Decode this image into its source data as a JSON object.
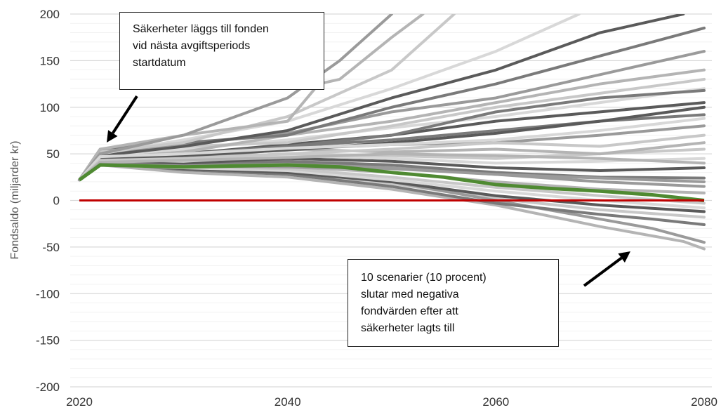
{
  "chart_data": {
    "type": "line",
    "title": "",
    "xlabel": "",
    "ylabel": "Fondsaldo (miljarder kr)",
    "xlim": [
      2020,
      2080
    ],
    "ylim": [
      -200,
      200
    ],
    "xticks": [
      "2020",
      "2040",
      "2060",
      "2080"
    ],
    "yticks": [
      "200",
      "150",
      "100",
      "50",
      "0",
      "-50",
      "-100",
      "-150",
      "-200"
    ],
    "grid": true,
    "colors": {
      "zero_line": "#c00000",
      "highlighted_scenario": "#4f8a32",
      "scenarios": [
        "#c8c8c8",
        "#b4b4b4",
        "#9a9a9a",
        "#7a7a7a",
        "#5a5a5a",
        "#d8d8d8"
      ]
    },
    "series": [
      {
        "role": "zero-reference",
        "x": [
          2020,
          2080
        ],
        "y": [
          0,
          0
        ]
      },
      {
        "role": "highlighted",
        "x": [
          2020,
          2022,
          2030,
          2040,
          2045,
          2050,
          2055,
          2060,
          2065,
          2070,
          2075,
          2080
        ],
        "y": [
          22,
          38,
          36,
          38,
          36,
          30,
          25,
          17,
          13,
          10,
          6,
          0
        ]
      },
      {
        "x": [
          2020,
          2022,
          2030,
          2040,
          2050,
          2060,
          2070,
          2075,
          2080
        ],
        "y": [
          22,
          40,
          33,
          30,
          18,
          2,
          -10,
          -14,
          -18
        ]
      },
      {
        "x": [
          2020,
          2022,
          2030,
          2040,
          2050,
          2060,
          2070,
          2078,
          2080
        ],
        "y": [
          22,
          38,
          30,
          25,
          12,
          -5,
          -28,
          -44,
          -52
        ]
      },
      {
        "x": [
          2020,
          2022,
          2030,
          2040,
          2050,
          2060,
          2070,
          2075,
          2080
        ],
        "y": [
          22,
          42,
          35,
          32,
          20,
          0,
          -20,
          -30,
          -45
        ]
      },
      {
        "x": [
          2020,
          2022,
          2030,
          2040,
          2050,
          2060,
          2070,
          2075,
          2080
        ],
        "y": [
          22,
          40,
          33,
          28,
          15,
          -3,
          -15,
          -20,
          -26
        ]
      },
      {
        "x": [
          2020,
          2022,
          2030,
          2040,
          2050,
          2060,
          2070,
          2080
        ],
        "y": [
          22,
          40,
          34,
          30,
          20,
          5,
          -5,
          -12
        ]
      },
      {
        "x": [
          2020,
          2022,
          2030,
          2040,
          2050,
          2060,
          2070,
          2080
        ],
        "y": [
          22,
          38,
          35,
          32,
          22,
          10,
          0,
          -8
        ]
      },
      {
        "x": [
          2020,
          2022,
          2030,
          2040,
          2050,
          2060,
          2070,
          2080
        ],
        "y": [
          22,
          42,
          36,
          34,
          25,
          14,
          5,
          -3
        ]
      },
      {
        "x": [
          2020,
          2022,
          2030,
          2040,
          2050,
          2060,
          2070,
          2080
        ],
        "y": [
          22,
          40,
          38,
          36,
          30,
          20,
          12,
          8
        ]
      },
      {
        "x": [
          2020,
          2022,
          2030,
          2040,
          2050,
          2060,
          2070,
          2080
        ],
        "y": [
          22,
          41,
          38,
          40,
          35,
          28,
          20,
          15
        ]
      },
      {
        "x": [
          2020,
          2022,
          2030,
          2040,
          2050,
          2060,
          2070,
          2080
        ],
        "y": [
          22,
          39,
          40,
          42,
          38,
          30,
          25,
          24
        ]
      },
      {
        "x": [
          2020,
          2022,
          2030,
          2040,
          2050,
          2060,
          2070,
          2080
        ],
        "y": [
          22,
          43,
          40,
          45,
          42,
          35,
          32,
          35
        ]
      },
      {
        "x": [
          2020,
          2022,
          2030,
          2040,
          2050,
          2060,
          2070,
          2080
        ],
        "y": [
          22,
          44,
          42,
          48,
          45,
          40,
          42,
          45
        ]
      },
      {
        "x": [
          2020,
          2022,
          2030,
          2040,
          2050,
          2060,
          2070,
          2080
        ],
        "y": [
          22,
          45,
          45,
          50,
          48,
          45,
          50,
          55
        ]
      },
      {
        "x": [
          2020,
          2022,
          2030,
          2040,
          2050,
          2060,
          2070,
          2080
        ],
        "y": [
          22,
          50,
          52,
          55,
          52,
          55,
          50,
          62
        ]
      },
      {
        "x": [
          2020,
          2022,
          2030,
          2040,
          2050,
          2060,
          2070,
          2080
        ],
        "y": [
          22,
          42,
          45,
          55,
          60,
          62,
          70,
          80
        ]
      },
      {
        "x": [
          2020,
          2022,
          2030,
          2040,
          2050,
          2060,
          2070,
          2080
        ],
        "y": [
          22,
          45,
          48,
          58,
          65,
          75,
          85,
          92
        ]
      },
      {
        "x": [
          2020,
          2022,
          2030,
          2040,
          2050,
          2060,
          2070,
          2080
        ],
        "y": [
          22,
          40,
          50,
          60,
          70,
          85,
          95,
          105
        ]
      },
      {
        "x": [
          2020,
          2022,
          2030,
          2040,
          2050,
          2060,
          2070,
          2080
        ],
        "y": [
          22,
          48,
          55,
          65,
          78,
          90,
          105,
          120
        ]
      },
      {
        "x": [
          2020,
          2022,
          2030,
          2040,
          2050,
          2060,
          2070,
          2080
        ],
        "y": [
          22,
          52,
          58,
          62,
          80,
          100,
          115,
          130
        ]
      },
      {
        "x": [
          2020,
          2022,
          2030,
          2040,
          2050,
          2060,
          2070,
          2080
        ],
        "y": [
          22,
          45,
          52,
          70,
          85,
          105,
          125,
          140
        ]
      },
      {
        "x": [
          2020,
          2022,
          2030,
          2040,
          2050,
          2060,
          2070,
          2080
        ],
        "y": [
          22,
          50,
          60,
          72,
          95,
          110,
          135,
          160
        ]
      },
      {
        "x": [
          2020,
          2022,
          2030,
          2040,
          2050,
          2060,
          2070,
          2080
        ],
        "y": [
          22,
          55,
          62,
          70,
          100,
          125,
          155,
          185
        ]
      },
      {
        "x": [
          2020,
          2022,
          2030,
          2040,
          2050,
          2060,
          2070,
          2078
        ],
        "y": [
          22,
          48,
          58,
          75,
          110,
          140,
          180,
          200
        ]
      },
      {
        "x": [
          2020,
          2022,
          2030,
          2040,
          2050,
          2060,
          2068
        ],
        "y": [
          22,
          50,
          65,
          85,
          120,
          160,
          200
        ]
      },
      {
        "x": [
          2020,
          2022,
          2030,
          2040,
          2050,
          2056
        ],
        "y": [
          22,
          52,
          62,
          90,
          140,
          200
        ]
      },
      {
        "x": [
          2020,
          2022,
          2030,
          2040,
          2043,
          2045,
          2050,
          2053
        ],
        "y": [
          22,
          55,
          70,
          85,
          125,
          130,
          175,
          200
        ]
      },
      {
        "x": [
          2020,
          2022,
          2030,
          2040,
          2045,
          2050
        ],
        "y": [
          22,
          50,
          70,
          110,
          150,
          200
        ]
      },
      {
        "x": [
          2020,
          2022,
          2030,
          2040,
          2050,
          2060,
          2070,
          2080
        ],
        "y": [
          22,
          46,
          50,
          58,
          70,
          95,
          110,
          118
        ]
      },
      {
        "x": [
          2020,
          2022,
          2030,
          2040,
          2050,
          2060,
          2070,
          2080
        ],
        "y": [
          22,
          44,
          48,
          54,
          62,
          72,
          85,
          100
        ]
      },
      {
        "x": [
          2020,
          2022,
          2030,
          2040,
          2050,
          2060,
          2070,
          2080
        ],
        "y": [
          22,
          47,
          50,
          56,
          60,
          65,
          75,
          88
        ]
      },
      {
        "x": [
          2020,
          2022,
          2030,
          2040,
          2050,
          2060,
          2070,
          2080
        ],
        "y": [
          22,
          43,
          45,
          50,
          55,
          62,
          58,
          70
        ]
      },
      {
        "x": [
          2020,
          2022,
          2030,
          2040,
          2050,
          2060,
          2070,
          2080
        ],
        "y": [
          22,
          41,
          43,
          46,
          50,
          48,
          45,
          40
        ]
      },
      {
        "x": [
          2020,
          2022,
          2030,
          2040,
          2050,
          2060,
          2070,
          2080
        ],
        "y": [
          22,
          39,
          37,
          36,
          34,
          28,
          24,
          20
        ]
      }
    ]
  },
  "annotations": {
    "top": {
      "lines": [
        "Säkerheter läggs till fonden",
        "vid nästa avgiftsperiods",
        "startdatum"
      ]
    },
    "bottom": {
      "lines": [
        "10 scenarier (10 procent)",
        "slutar med negativa",
        "fondvärden efter att",
        "säkerheter lagts till"
      ]
    }
  }
}
